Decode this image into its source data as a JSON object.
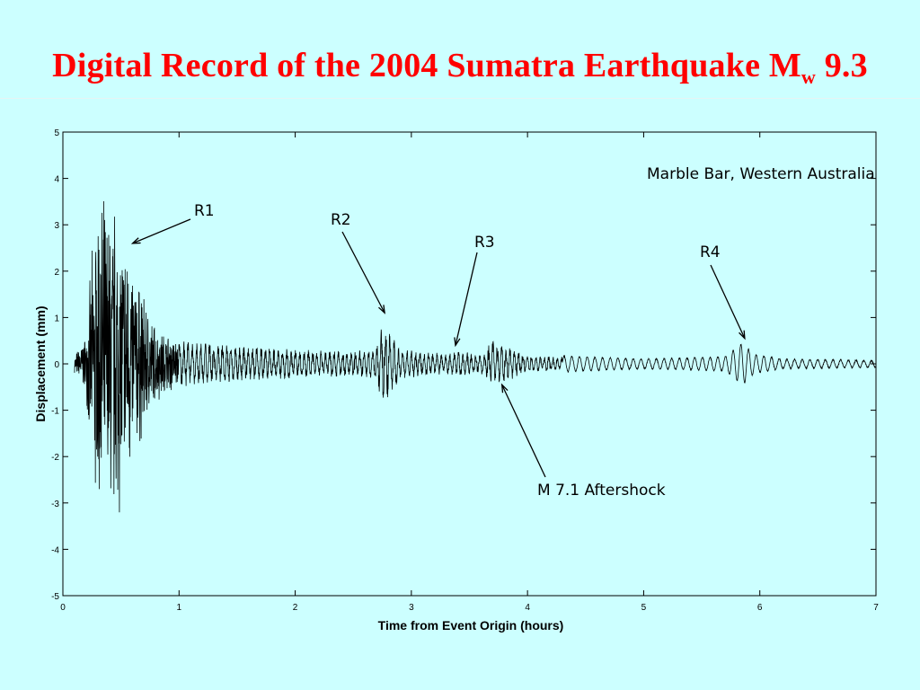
{
  "slide": {
    "title_main": "Digital Record of the 2004 Sumatra Earthquake M",
    "title_sub": "w",
    "title_tail": " 9.3"
  },
  "chart_data": {
    "type": "line",
    "title": "",
    "xlabel": "Time from Event Origin (hours)",
    "ylabel": "Displacement (mm)",
    "xlim": [
      0,
      7
    ],
    "ylim": [
      -5,
      5
    ],
    "xticks": [
      "0",
      "1",
      "2",
      "3",
      "4",
      "5",
      "6",
      "7"
    ],
    "yticks": [
      "5",
      "4",
      "3",
      "2",
      "1",
      "0",
      "-1",
      "-2",
      "-3",
      "-4",
      "-5"
    ],
    "grid": false,
    "station_label": "Marble Bar, Western Australia",
    "annotations": [
      {
        "text": "R1",
        "target_x": 0.6,
        "target_y": 2.6
      },
      {
        "text": "R2",
        "target_x": 2.77,
        "target_y": 1.1
      },
      {
        "text": "R3",
        "target_x": 3.38,
        "target_y": 0.4
      },
      {
        "text": "R4",
        "target_x": 5.87,
        "target_y": 0.55
      },
      {
        "text": "M 7.1 Aftershock",
        "target_x": 3.78,
        "target_y": -0.45
      }
    ],
    "series": [
      {
        "color": "#000000",
        "envelope": [
          {
            "x": 0.1,
            "amp": 0.2
          },
          {
            "x": 0.2,
            "amp": 0.7
          },
          {
            "x": 0.25,
            "amp": 2.5
          },
          {
            "x": 0.3,
            "amp": 4.1
          },
          {
            "x": 0.4,
            "amp": 3.7
          },
          {
            "x": 0.45,
            "amp": 3.9
          },
          {
            "x": 0.5,
            "amp": 3.4
          },
          {
            "x": 0.55,
            "amp": 3.0
          },
          {
            "x": 0.6,
            "amp": 2.5
          },
          {
            "x": 0.7,
            "amp": 1.6
          },
          {
            "x": 0.8,
            "amp": 0.9
          },
          {
            "x": 1.0,
            "amp": 0.55
          },
          {
            "x": 1.5,
            "amp": 0.45
          },
          {
            "x": 2.0,
            "amp": 0.35
          },
          {
            "x": 2.5,
            "amp": 0.3
          },
          {
            "x": 2.7,
            "amp": 0.4
          },
          {
            "x": 2.76,
            "amp": 1.1
          },
          {
            "x": 2.8,
            "amp": 0.9
          },
          {
            "x": 2.9,
            "amp": 0.35
          },
          {
            "x": 3.3,
            "amp": 0.25
          },
          {
            "x": 3.4,
            "amp": 0.3
          },
          {
            "x": 3.6,
            "amp": 0.25
          },
          {
            "x": 3.7,
            "amp": 0.55
          },
          {
            "x": 3.8,
            "amp": 0.45
          },
          {
            "x": 4.0,
            "amp": 0.2
          },
          {
            "x": 5.0,
            "amp": 0.1
          },
          {
            "x": 5.7,
            "amp": 0.15
          },
          {
            "x": 5.85,
            "amp": 0.45
          },
          {
            "x": 5.95,
            "amp": 0.2
          },
          {
            "x": 6.2,
            "amp": 0.1
          },
          {
            "x": 7.0,
            "amp": 0.07
          }
        ]
      }
    ]
  }
}
